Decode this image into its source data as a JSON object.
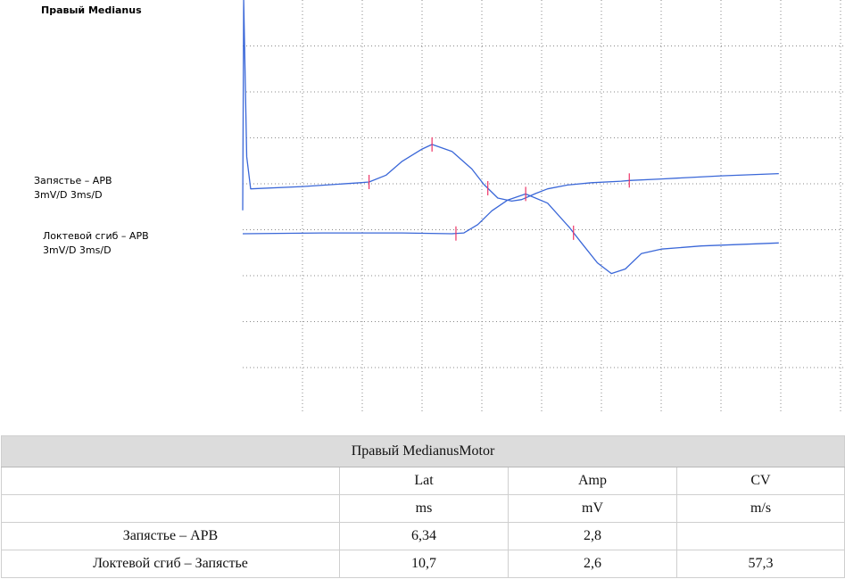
{
  "chart_data": {
    "type": "line",
    "title": "Правый Medianus",
    "units": {
      "x_ms": 3,
      "y_mv": 3
    },
    "traces": [
      {
        "name": "Запястье – APB",
        "scale": "3mV/D 3ms/D",
        "color": "#3a67d8",
        "has_stim_artifact": true,
        "points": [
          [
            0,
            -1.5
          ],
          [
            0.05,
            10.0
          ],
          [
            0.2,
            2.0
          ],
          [
            0.4,
            -0.1
          ],
          [
            3,
            0.05
          ],
          [
            5.9,
            0.3
          ],
          [
            6.34,
            0.35
          ],
          [
            7.2,
            0.8
          ],
          [
            8.0,
            1.7
          ],
          [
            9.0,
            2.5
          ],
          [
            9.5,
            2.8
          ],
          [
            10.5,
            2.35
          ],
          [
            11.5,
            1.2
          ],
          [
            12.1,
            0.2
          ],
          [
            12.8,
            -0.7
          ],
          [
            13.5,
            -0.9
          ],
          [
            14.0,
            -0.8
          ],
          [
            14.7,
            -0.4
          ],
          [
            15.3,
            -0.1
          ],
          [
            16.3,
            0.15
          ],
          [
            17.5,
            0.3
          ],
          [
            19.0,
            0.4
          ],
          [
            19.4,
            0.45
          ],
          [
            21,
            0.55
          ],
          [
            24,
            0.75
          ],
          [
            26.9,
            0.9
          ]
        ],
        "markers": [
          6.34,
          9.5,
          12.3,
          19.4
        ],
        "marker_color": "#ee3366"
      },
      {
        "name": "Локтевой сгиб – APB",
        "scale": "3mV/D 3ms/D",
        "color": "#3a67d8",
        "has_stim_artifact": false,
        "points": [
          [
            0,
            0
          ],
          [
            4,
            0.05
          ],
          [
            8,
            0.05
          ],
          [
            10.5,
            0
          ],
          [
            11.1,
            0.05
          ],
          [
            11.8,
            0.6
          ],
          [
            12.5,
            1.5
          ],
          [
            13.3,
            2.2
          ],
          [
            14.2,
            2.6
          ],
          [
            15.3,
            2.0
          ],
          [
            16.4,
            0.4
          ],
          [
            17.0,
            -0.6
          ],
          [
            17.8,
            -1.9
          ],
          [
            18.5,
            -2.6
          ],
          [
            19.2,
            -2.3
          ],
          [
            20.0,
            -1.3
          ],
          [
            21.0,
            -1.0
          ],
          [
            23.0,
            -0.8
          ],
          [
            26.9,
            -0.6
          ]
        ],
        "markers": [
          10.7,
          14.2,
          16.6
        ],
        "marker_color": "#ee3366"
      }
    ]
  },
  "table": {
    "title": "Правый MedianusMotor",
    "columns": [
      "Lat",
      "Amp",
      "CV"
    ],
    "units": [
      "ms",
      "mV",
      "m/s"
    ],
    "rows": [
      {
        "name": "Запястье – APB",
        "cells": [
          "6,34",
          "2,8",
          ""
        ]
      },
      {
        "name": "Локтевой сгиб – Запястье",
        "cells": [
          "10,7",
          "2,6",
          "57,3"
        ]
      }
    ]
  }
}
